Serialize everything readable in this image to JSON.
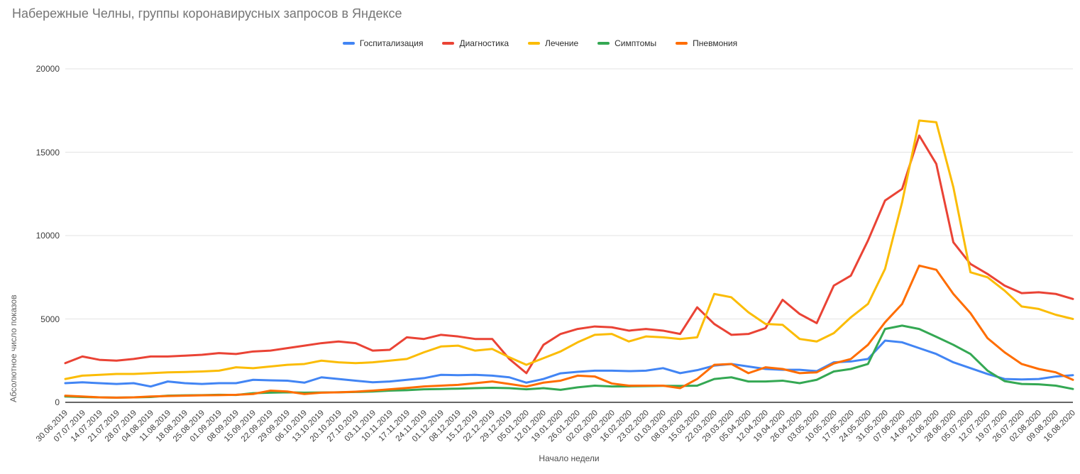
{
  "title": "Набережные Челны, группы коронавирусных запросов в Яндексе",
  "chart_data": {
    "type": "line",
    "title": "Набережные Челны, группы коронавирусных запросов в Яндексе",
    "xlabel": "Начало недели",
    "ylabel": "Абсолютное число показов",
    "ylim": [
      0,
      20000
    ],
    "yticks": [
      0,
      5000,
      10000,
      15000,
      20000
    ],
    "grid": true,
    "legend_position": "top-center",
    "axis_color": "#333333",
    "gridline_color": "#e3e3e3",
    "categories": [
      "30.06.2019",
      "07.07.2019",
      "14.07.2019",
      "21.07.2019",
      "28.07.2019",
      "04.08.2019",
      "11.08.2019",
      "18.08.2019",
      "25.08.2019",
      "01.09.2019",
      "08.09.2019",
      "15.09.2019",
      "22.09.2019",
      "29.09.2019",
      "06.10.2019",
      "13.10.2019",
      "20.10.2019",
      "27.10.2019",
      "03.11.2019",
      "10.11.2019",
      "17.11.2019",
      "24.11.2019",
      "01.12.2019",
      "08.12.2019",
      "15.12.2019",
      "22.12.2019",
      "29.12.2019",
      "05.01.2020",
      "12.01.2020",
      "19.01.2020",
      "26.01.2020",
      "02.02.2020",
      "09.02.2020",
      "16.02.2020",
      "23.02.2020",
      "01.03.2020",
      "08.03.2020",
      "15.03.2020",
      "22.03.2020",
      "29.03.2020",
      "05.04.2020",
      "12.04.2020",
      "19.04.2020",
      "26.04.2020",
      "03.05.2020",
      "10.05.2020",
      "17.05.2020",
      "24.05.2020",
      "31.05.2020",
      "07.06.2020",
      "14.06.2020",
      "21.06.2020",
      "28.06.2020",
      "05.07.2020",
      "12.07.2020",
      "19.07.2020",
      "26.07.2020",
      "02.08.2020",
      "09.08.2020",
      "16.08.2020"
    ],
    "series": [
      {
        "name": "Госпитализация",
        "slug": "hospitalization",
        "color": "#4285f4",
        "values": [
          1150,
          1200,
          1150,
          1100,
          1150,
          950,
          1250,
          1150,
          1100,
          1150,
          1150,
          1350,
          1320,
          1300,
          1180,
          1500,
          1400,
          1300,
          1200,
          1250,
          1350,
          1450,
          1650,
          1630,
          1650,
          1600,
          1500,
          1180,
          1400,
          1740,
          1830,
          1900,
          1900,
          1870,
          1900,
          2050,
          1750,
          1930,
          2200,
          2300,
          2150,
          2000,
          1950,
          1950,
          1870,
          2400,
          2450,
          2600,
          3700,
          3600,
          3250,
          2900,
          2400,
          2050,
          1700,
          1400,
          1370,
          1400,
          1550,
          1630
        ]
      },
      {
        "name": "Диагностика",
        "slug": "diagnostics",
        "color": "#ea4335",
        "values": [
          2350,
          2750,
          2550,
          2500,
          2600,
          2750,
          2750,
          2800,
          2850,
          2950,
          2900,
          3050,
          3100,
          3250,
          3400,
          3550,
          3650,
          3550,
          3100,
          3150,
          3900,
          3800,
          4050,
          3950,
          3800,
          3800,
          2600,
          1750,
          3450,
          4100,
          4400,
          4550,
          4500,
          4300,
          4400,
          4300,
          4100,
          5700,
          4700,
          4050,
          4100,
          4450,
          6150,
          5300,
          4750,
          7000,
          7600,
          9700,
          12100,
          12800,
          16000,
          14300,
          9600,
          8300,
          7700,
          7000,
          6550,
          6600,
          6500,
          6200
        ]
      },
      {
        "name": "Лечение",
        "slug": "treatment",
        "color": "#fbbc04",
        "values": [
          1400,
          1600,
          1650,
          1700,
          1700,
          1750,
          1800,
          1820,
          1850,
          1900,
          2100,
          2050,
          2150,
          2250,
          2300,
          2500,
          2400,
          2350,
          2400,
          2500,
          2600,
          3000,
          3350,
          3400,
          3100,
          3200,
          2700,
          2250,
          2650,
          3050,
          3600,
          4050,
          4100,
          3650,
          3950,
          3900,
          3800,
          3900,
          6500,
          6300,
          5400,
          4700,
          4650,
          3800,
          3650,
          4150,
          5100,
          5900,
          8000,
          12000,
          16900,
          16800,
          12900,
          7800,
          7500,
          6700,
          5750,
          5600,
          5250,
          5000
        ]
      },
      {
        "name": "Симптомы",
        "slug": "symptoms",
        "color": "#34a853",
        "values": [
          350,
          320,
          300,
          280,
          300,
          320,
          400,
          420,
          430,
          450,
          440,
          550,
          580,
          600,
          580,
          590,
          600,
          620,
          650,
          700,
          730,
          780,
          800,
          820,
          850,
          870,
          850,
          780,
          850,
          750,
          900,
          1000,
          950,
          960,
          975,
          990,
          985,
          1000,
          1400,
          1500,
          1250,
          1250,
          1300,
          1150,
          1350,
          1850,
          2000,
          2300,
          4400,
          4600,
          4400,
          3930,
          3450,
          2900,
          1900,
          1270,
          1100,
          1080,
          1000,
          800
        ]
      },
      {
        "name": "Пневмония",
        "slug": "pneumonia",
        "color": "#ff6d00",
        "values": [
          400,
          350,
          300,
          280,
          300,
          350,
          380,
          400,
          420,
          430,
          450,
          500,
          700,
          650,
          500,
          580,
          600,
          640,
          700,
          780,
          860,
          950,
          1000,
          1050,
          1150,
          1250,
          1100,
          950,
          1180,
          1300,
          1600,
          1550,
          1130,
          1000,
          1000,
          1000,
          850,
          1400,
          2250,
          2300,
          1750,
          2100,
          2000,
          1750,
          1800,
          2330,
          2600,
          3450,
          4800,
          5900,
          8200,
          7950,
          6500,
          5350,
          3850,
          3000,
          2300,
          2000,
          1800,
          1350
        ]
      }
    ]
  }
}
